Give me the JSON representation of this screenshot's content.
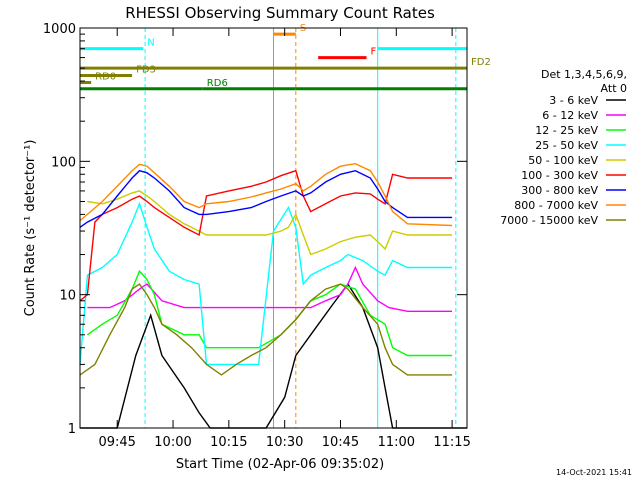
{
  "chart_data": {
    "type": "line",
    "title": "RHESSI Observing Summary Count Rates",
    "xlabel": "Start Time (02-Apr-06 09:35:02)",
    "ylabel": "Count Rate (s⁻¹ detector⁻¹)",
    "y_scale": "log",
    "ylim": [
      1,
      1000
    ],
    "xlim_min": [
      0,
      104
    ],
    "x_ticks": [
      "09:45",
      "10:00",
      "10:15",
      "10:30",
      "10:45",
      "11:00",
      "11:15"
    ],
    "x_tick_min": [
      10,
      25,
      40,
      55,
      70,
      85,
      100
    ],
    "y_ticks": [
      "1",
      "10",
      "100",
      "1000"
    ],
    "legend_header": [
      "Det 1,3,4,5,6,9,",
      "Att 0"
    ],
    "series": [
      {
        "name": "3 - 6 keV",
        "color": "#000000",
        "x": [
          0,
          6,
          10,
          15,
          19,
          22,
          28,
          32,
          35,
          42,
          50,
          55,
          58,
          62,
          68,
          72,
          76,
          80,
          82,
          84,
          88,
          94,
          100,
          104
        ],
        "y": [
          1,
          1,
          1,
          3.5,
          7,
          3.5,
          2,
          1.3,
          1,
          1,
          1,
          1.7,
          3.5,
          5,
          8.5,
          12,
          8,
          4,
          2,
          1,
          1,
          1,
          1,
          1
        ]
      },
      {
        "name": "6 - 12 keV",
        "color": "#ff00ff",
        "x": [
          2,
          8,
          12,
          16,
          18,
          22,
          28,
          32,
          34,
          40,
          48,
          54,
          58,
          62,
          66,
          70,
          72,
          74,
          76,
          80,
          83,
          88,
          100
        ],
        "y": [
          8,
          8,
          9,
          11,
          12,
          9,
          8,
          8,
          8,
          8,
          8,
          8,
          8,
          8,
          9,
          10,
          12,
          16,
          12,
          9,
          8,
          7.5,
          7.5
        ]
      },
      {
        "name": "12 - 25 keV",
        "color": "#00ff00",
        "x": [
          2,
          6,
          10,
          14,
          16,
          18,
          20,
          22,
          28,
          32,
          34,
          40,
          48,
          54,
          58,
          62,
          66,
          70,
          72,
          74,
          78,
          82,
          84,
          88,
          100
        ],
        "y": [
          5,
          6,
          7,
          11,
          15,
          13,
          10,
          6,
          5,
          5,
          4,
          4,
          4,
          5,
          6.5,
          9,
          10,
          12,
          11.5,
          11,
          7,
          6,
          4,
          3.5,
          3.5
        ]
      },
      {
        "name": "25 - 50 keV",
        "color": "#00ffff",
        "x": [
          0,
          2,
          6,
          10,
          14,
          16,
          18,
          20,
          24,
          28,
          32,
          34,
          40,
          48,
          52,
          56,
          58,
          60,
          62,
          66,
          70,
          72,
          76,
          80,
          82,
          84,
          88,
          100
        ],
        "y": [
          3,
          14,
          16,
          20,
          35,
          48,
          32,
          22,
          15,
          13,
          12,
          3,
          3,
          3,
          30,
          45,
          32,
          12,
          14,
          16,
          18,
          20,
          18,
          15,
          14,
          18,
          16,
          16
        ]
      },
      {
        "name": "50 - 100 keV",
        "color": "#cccc00",
        "x": [
          2,
          6,
          10,
          14,
          16,
          18,
          20,
          24,
          28,
          32,
          34,
          40,
          46,
          50,
          54,
          56,
          58,
          60,
          62,
          66,
          70,
          74,
          78,
          80,
          82,
          84,
          88,
          100
        ],
        "y": [
          50,
          48,
          52,
          58,
          60,
          55,
          50,
          40,
          34,
          30,
          28,
          28,
          28,
          28,
          30,
          32,
          40,
          28,
          20,
          22,
          25,
          27,
          28,
          25,
          22,
          30,
          28,
          28
        ]
      },
      {
        "name": "100 - 300 keV",
        "color": "#ff0000",
        "x": [
          0,
          2,
          4,
          6,
          10,
          14,
          16,
          18,
          20,
          24,
          28,
          32,
          34,
          40,
          46,
          50,
          54,
          58,
          60,
          62,
          66,
          70,
          74,
          78,
          80,
          82,
          84,
          88,
          100
        ],
        "y": [
          9,
          10,
          35,
          40,
          45,
          52,
          55,
          50,
          45,
          38,
          32,
          28,
          55,
          60,
          65,
          70,
          78,
          85,
          55,
          42,
          48,
          55,
          58,
          57,
          52,
          48,
          80,
          75,
          75
        ]
      },
      {
        "name": "300 - 800 keV",
        "color": "#0000ff",
        "x": [
          0,
          2,
          6,
          10,
          14,
          16,
          18,
          20,
          24,
          28,
          32,
          34,
          40,
          46,
          50,
          54,
          58,
          60,
          62,
          66,
          70,
          74,
          78,
          80,
          82,
          84,
          88,
          100
        ],
        "y": [
          32,
          35,
          40,
          55,
          75,
          85,
          82,
          75,
          60,
          45,
          40,
          40,
          42,
          45,
          50,
          55,
          60,
          55,
          58,
          70,
          80,
          85,
          75,
          62,
          50,
          45,
          38,
          38
        ]
      },
      {
        "name": "800 - 7000 keV",
        "color": "#ff8800",
        "x": [
          0,
          2,
          6,
          10,
          14,
          16,
          18,
          20,
          24,
          28,
          32,
          34,
          40,
          46,
          50,
          54,
          58,
          60,
          62,
          66,
          70,
          74,
          78,
          80,
          82,
          84,
          88,
          100
        ],
        "y": [
          36,
          40,
          50,
          65,
          85,
          95,
          92,
          82,
          65,
          50,
          45,
          48,
          50,
          54,
          58,
          62,
          68,
          60,
          65,
          80,
          92,
          96,
          85,
          70,
          55,
          42,
          34,
          33
        ]
      },
      {
        "name": "7000 - 15000 keV",
        "color": "#808000",
        "x": [
          0,
          4,
          8,
          12,
          14,
          16,
          18,
          20,
          22,
          26,
          30,
          34,
          38,
          42,
          46,
          50,
          54,
          58,
          62,
          66,
          70,
          72,
          76,
          80,
          82,
          84,
          88,
          100
        ],
        "y": [
          2.5,
          3,
          5,
          8,
          11,
          12,
          10,
          8,
          6,
          5,
          4,
          3,
          2.5,
          3,
          3.5,
          4,
          5,
          6.5,
          9,
          11,
          12,
          11,
          8,
          6,
          4,
          3,
          2.5,
          2.5
        ]
      }
    ],
    "state_bars": [
      {
        "label": "N",
        "color": "#00ffff",
        "y": 700,
        "segments": [
          [
            0,
            17
          ],
          [
            80,
            104
          ]
        ]
      },
      {
        "label": "S",
        "color": "#ff8800",
        "y": 900,
        "segments": [
          [
            52,
            58
          ]
        ]
      },
      {
        "label": "F",
        "color": "#ff0000",
        "y": 600,
        "segments": [
          [
            64,
            77
          ]
        ]
      },
      {
        "label": "FD2",
        "color": "#808000",
        "y": 500,
        "segments": [
          [
            0,
            104
          ]
        ]
      },
      {
        "label": "FD3",
        "color": "#808000",
        "y": 440,
        "segments": [
          [
            0,
            14
          ]
        ]
      },
      {
        "label": "RD0",
        "color": "#808000",
        "y": 390,
        "segments": [
          [
            0,
            3
          ]
        ]
      },
      {
        "label": "RD6",
        "color": "#008000",
        "y": 350,
        "segments": [
          [
            0,
            33
          ],
          [
            33,
            58
          ],
          [
            58,
            79
          ],
          [
            79,
            104
          ]
        ]
      }
    ],
    "vertical_markers": [
      {
        "x": 0,
        "color": "#00ffff",
        "style": "solid"
      },
      {
        "x": 17.5,
        "color": "#00ffff",
        "style": "dashed"
      },
      {
        "x": 52,
        "color": "#ff8800",
        "style": "solid"
      },
      {
        "x": 58,
        "color": "#ff8800",
        "style": "dashed"
      },
      {
        "x": 80,
        "color": "#00ffff",
        "style": "solid"
      },
      {
        "x": 101,
        "color": "#00ffff",
        "style": "dashed"
      }
    ],
    "footer_date": "14-Oct-2021 15:41",
    "grid": false,
    "legend_placement": "right"
  }
}
